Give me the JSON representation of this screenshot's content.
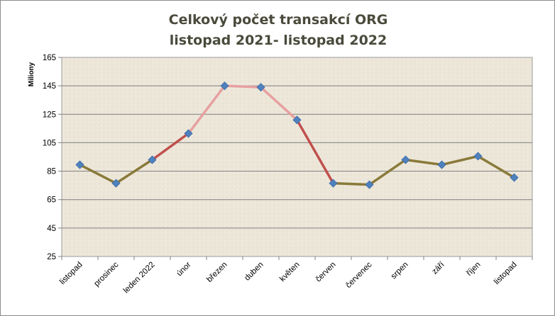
{
  "chart_data": {
    "type": "line",
    "title_lines": [
      "Celkový počet transakcí ORG",
      "listopad 2021- listopad 2022"
    ],
    "ylabel": "Miliony",
    "xlabel": "",
    "ylim": [
      25,
      165
    ],
    "yticks": [
      25,
      45,
      65,
      85,
      105,
      125,
      145,
      165
    ],
    "grid": true,
    "legend": "none",
    "categories": [
      "listopad",
      "prosinec",
      "leden 2022",
      "únor",
      "březen",
      "duben",
      "květen",
      "červen",
      "červenec",
      "srpen",
      "září",
      "říjen",
      "listopad"
    ],
    "series": [
      {
        "values": [
          89.5,
          76.5,
          93,
          111.5,
          145,
          144,
          121,
          76.5,
          75.5,
          93,
          89.5,
          95.5,
          80.5
        ]
      }
    ],
    "colors": {
      "line_low": "#8a7a3a",
      "line_rise": "#c0504d",
      "line_peak": "#e6a0a0",
      "marker": "#4f81bd",
      "plot_bg": "#ece6d8",
      "grid": "#7f7f7f"
    }
  }
}
